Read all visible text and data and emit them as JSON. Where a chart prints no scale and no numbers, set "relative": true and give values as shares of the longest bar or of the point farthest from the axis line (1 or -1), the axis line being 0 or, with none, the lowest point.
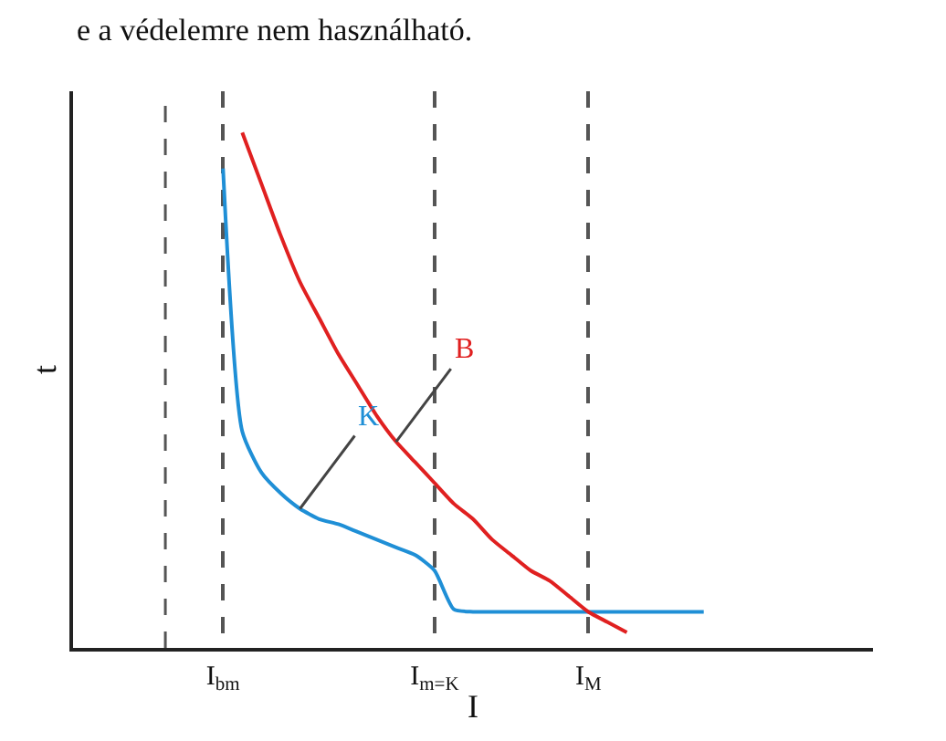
{
  "chart_data": {
    "type": "line",
    "relative": true,
    "xlabel": "I",
    "ylabel": "t",
    "annotations": [
      "e a védelemre nem használható."
    ],
    "categories": [
      null,
      null,
      null,
      null,
      null,
      null,
      null,
      "I$_{bm}$",
      null,
      null,
      null,
      null,
      null,
      null,
      null,
      null,
      null,
      null,
      "I$_{m=K}$",
      null,
      null,
      null,
      null,
      null,
      null,
      null,
      "I$_{M}$",
      null,
      null,
      null,
      null,
      null,
      null,
      null,
      null,
      null,
      null,
      null,
      null,
      null,
      null
    ],
    "series": [
      {
        "name": "K",
        "color": "#1f8fd6",
        "values": [
          null,
          null,
          null,
          null,
          null,
          null,
          null,
          0.93,
          0.42,
          0.34,
          0.3,
          0.27,
          0.25,
          0.24,
          0.225,
          0.21,
          0.195,
          0.18,
          0.15,
          0.075,
          0.07,
          0.07,
          0.07,
          0.07,
          0.07,
          0.07,
          0.07,
          0.07,
          0.07,
          0.07,
          0.07,
          0.07,
          0.07,
          null,
          null,
          null,
          null,
          null,
          null,
          null,
          null
        ]
      },
      {
        "name": "B",
        "color": "#e02020",
        "values": [
          null,
          null,
          null,
          null,
          null,
          null,
          null,
          null,
          1.0,
          0.9,
          0.8,
          0.71,
          0.64,
          0.57,
          0.51,
          0.45,
          0.4,
          0.36,
          0.32,
          0.28,
          0.25,
          0.21,
          0.18,
          0.15,
          0.13,
          0.1,
          0.07,
          0.05,
          0.03,
          null,
          null,
          null,
          null,
          null,
          null,
          null,
          null,
          null,
          null,
          null,
          null
        ]
      }
    ],
    "grid": "x",
    "legend": false,
    "marker": "none",
    "line_style": "solid"
  }
}
